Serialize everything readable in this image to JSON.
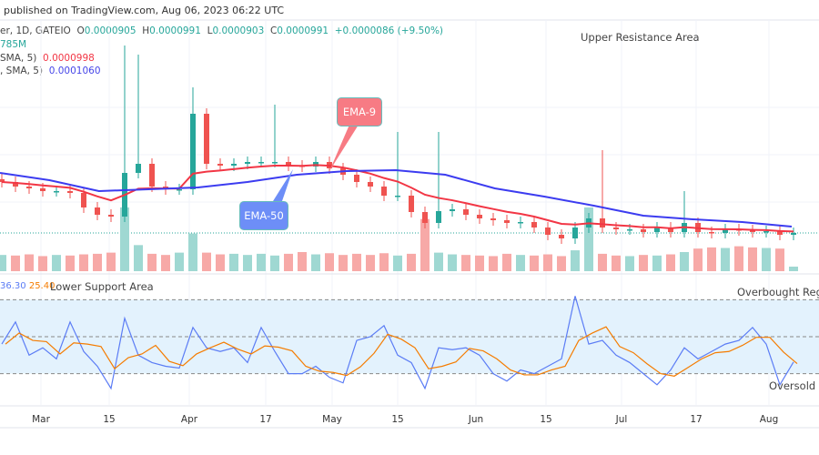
{
  "header": {
    "published": "published on TradingView.com, Aug 06, 2023 06:22 UTC",
    "symbol": "er, 1D, GATEIO",
    "o_label": "O",
    "o": "0.0000905",
    "h_label": "H",
    "h": "0.0000991",
    "l_label": "L",
    "l": "0.0000903",
    "c_label": "C",
    "c": "0.0000991",
    "change": "+0.0000086 (+9.50%)",
    "volume": "785M",
    "ema9_label": "SMA, 5)",
    "ema9_value": "0.0000998",
    "ema50_label": ", SMA, 5)",
    "ema50_value": "0.0001060",
    "rsi_value": "36.30",
    "rsi_ma_value": "25.40"
  },
  "annotations": {
    "upper": "Upper Resistance Area",
    "lower": "Lower Support Area",
    "overbought": "Overbought Regio",
    "oversold": "Oversold R",
    "ema9": "EMA-9",
    "ema50": "EMA-50"
  },
  "colors": {
    "up": "#26a69a",
    "down": "#ef5350",
    "ema9": "#f23645",
    "ema50": "#3c3cf0",
    "rsi": "#5b7cf5",
    "rsi_ma": "#f57c00",
    "band": "#e3f2fd"
  },
  "chart_data": {
    "type": "candlestick",
    "interval": "1D",
    "x_ticks": [
      "Mar",
      "15",
      "Apr",
      "17",
      "May",
      "15",
      "Jun",
      "15",
      "Jul",
      "17",
      "Aug"
    ],
    "closes": [
      0.0001551,
      0.0001501,
      0.0001481,
      0.0001451,
      0.0001451,
      0.0001431,
      0.0001271,
      0.0001191,
      0.0001171,
      0.0001651,
      0.0001751,
      0.0001501,
      0.0001471,
      0.0001471,
      0.0002301,
      0.0001751,
      0.0001731,
      0.0001751,
      0.0001771,
      0.0001771,
      0.0001771,
      0.0001731,
      0.0001721,
      0.0001771,
      0.0001701,
      0.0001631,
      0.0001551,
      0.0001501,
      0.0001401,
      0.0001401,
      0.0001221,
      0.0001101,
      0.0001231,
      0.0001251,
      0.0001191,
      0.0001151,
      0.0001131,
      0.0001101,
      0.0001111,
      0.0001051,
      9.71e-05,
      9.31e-05,
      0.0001051,
      0.0001151,
      0.0001051,
      0.0001031,
      0.0001031,
      0.0001001,
      0.0001051,
      0.0001001,
      0.0001101,
      0.0001001,
      9.91e-05,
      0.0001031,
      0.0001021,
      0.0001001,
      0.0001011,
      9.71e-05,
      9.91e-05
    ],
    "spike_highs": [
      [
        9,
        0.0003051
      ],
      [
        10,
        0.0002951
      ],
      [
        14,
        0.0002591
      ],
      [
        20,
        0.0002401
      ],
      [
        29,
        0.0002101
      ],
      [
        32,
        0.0002101
      ],
      [
        44,
        0.0001901
      ],
      [
        50,
        0.0001451
      ]
    ],
    "ema50": [
      0.0001651,
      0.0001571,
      0.0001451,
      0.0001471,
      0.0001491,
      0.0001551,
      0.0001631,
      0.0001671,
      0.0001681,
      0.0001631,
      0.0001481,
      0.0001391,
      0.0001291,
      0.0001181,
      0.0001141,
      0.0001111,
      0.0001061
    ],
    "volume_m": [
      2800,
      2700,
      2900,
      2600,
      2800,
      2700,
      2900,
      3000,
      3200,
      11000,
      4500,
      3000,
      2800,
      3200,
      6500,
      3200,
      2900,
      3000,
      2800,
      3000,
      2700,
      3000,
      3300,
      2900,
      3100,
      2800,
      3000,
      2800,
      3100,
      2700,
      3000,
      9000,
      3200,
      2900,
      2800,
      2700,
      2600,
      3000,
      2800,
      2700,
      2900,
      2600,
      3600,
      11000,
      3000,
      2700,
      2600,
      2800,
      2700,
      2900,
      3300,
      3900,
      4100,
      4000,
      4300,
      4100,
      4000,
      3900,
      785
    ],
    "rsi": {
      "upper": 70,
      "middle": 50,
      "lower": 30,
      "values": [
        46,
        58,
        40,
        44,
        38,
        58,
        42,
        34,
        22,
        60,
        40,
        36,
        34,
        33,
        55,
        44,
        42,
        44,
        36,
        55,
        42,
        30,
        30,
        34,
        28,
        25,
        48,
        50,
        56,
        40,
        36,
        22,
        44,
        43,
        44,
        40,
        30,
        26,
        32,
        30,
        34,
        38,
        72,
        46,
        48,
        40,
        36,
        30,
        24,
        32,
        44,
        38,
        42,
        46,
        48,
        55,
        46,
        24,
        36.3
      ]
    }
  }
}
